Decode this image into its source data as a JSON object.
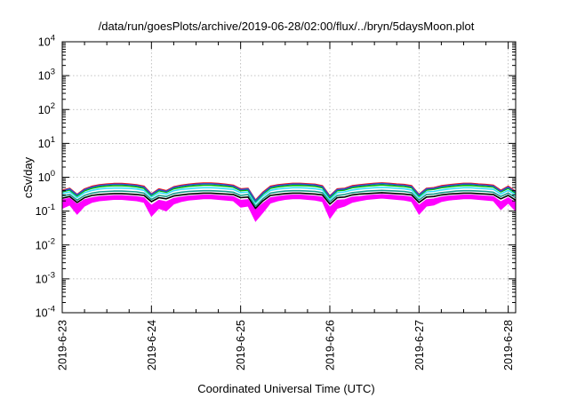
{
  "chart_data": {
    "type": "line",
    "title": "/data/run/goesPlots/archive/2019-06-28/02:00/flux/../bryn/5daysMoon.plot",
    "xlabel": "Coordinated Universal Time (UTC)",
    "ylabel": "cSv/day",
    "yscale": "log",
    "ylim": [
      0.0001,
      10000
    ],
    "xlim": [
      "2019-06-23 00:00",
      "2019-06-28 02:00"
    ],
    "grid": true,
    "x_ticks": [
      "2019-6-23",
      "2019-6-24",
      "2019-6-25",
      "2019-6-26",
      "2019-6-27",
      "2019-6-28"
    ],
    "y_ticks": [
      {
        "base": "10",
        "exp": "-4",
        "value": 0.0001
      },
      {
        "base": "10",
        "exp": "-3",
        "value": 0.001
      },
      {
        "base": "10",
        "exp": "-2",
        "value": 0.01
      },
      {
        "base": "10",
        "exp": "-1",
        "value": 0.1
      },
      {
        "base": "10",
        "exp": "0",
        "value": 1
      },
      {
        "base": "10",
        "exp": "1",
        "value": 10
      },
      {
        "base": "10",
        "exp": "2",
        "value": 100
      },
      {
        "base": "10",
        "exp": "3",
        "value": 1000
      },
      {
        "base": "10",
        "exp": "4",
        "value": 10000
      }
    ],
    "x_hours": [
      0,
      2,
      4,
      6,
      8,
      10,
      12,
      14,
      16,
      18,
      20,
      22,
      24,
      26,
      28,
      30,
      32,
      34,
      36,
      38,
      40,
      42,
      44,
      46,
      48,
      50,
      52,
      54,
      56,
      58,
      60,
      62,
      64,
      66,
      68,
      70,
      72,
      74,
      76,
      78,
      80,
      82,
      84,
      86,
      88,
      90,
      92,
      94,
      96,
      98,
      100,
      102,
      104,
      106,
      108,
      110,
      112,
      114,
      116,
      118,
      120,
      122
    ],
    "series": [
      {
        "color": "#ff00ff",
        "style": "band",
        "lower": [
          0.12,
          0.15,
          0.08,
          0.14,
          0.18,
          0.2,
          0.21,
          0.22,
          0.22,
          0.21,
          0.2,
          0.18,
          0.07,
          0.12,
          0.1,
          0.16,
          0.19,
          0.21,
          0.22,
          0.23,
          0.23,
          0.22,
          0.21,
          0.2,
          0.13,
          0.14,
          0.05,
          0.09,
          0.17,
          0.2,
          0.22,
          0.23,
          0.23,
          0.22,
          0.21,
          0.19,
          0.06,
          0.12,
          0.14,
          0.18,
          0.2,
          0.22,
          0.23,
          0.24,
          0.23,
          0.22,
          0.21,
          0.19,
          0.08,
          0.14,
          0.15,
          0.19,
          0.21,
          0.22,
          0.23,
          0.23,
          0.22,
          0.21,
          0.2,
          0.11,
          0.17,
          0.1
        ],
        "upper": [
          0.22,
          0.24,
          0.16,
          0.22,
          0.25,
          0.27,
          0.28,
          0.29,
          0.29,
          0.28,
          0.27,
          0.25,
          0.15,
          0.21,
          0.19,
          0.24,
          0.26,
          0.28,
          0.29,
          0.3,
          0.3,
          0.29,
          0.28,
          0.27,
          0.21,
          0.22,
          0.11,
          0.17,
          0.25,
          0.27,
          0.29,
          0.3,
          0.3,
          0.29,
          0.28,
          0.26,
          0.13,
          0.21,
          0.22,
          0.26,
          0.27,
          0.29,
          0.3,
          0.31,
          0.3,
          0.29,
          0.28,
          0.26,
          0.15,
          0.22,
          0.23,
          0.26,
          0.28,
          0.29,
          0.3,
          0.3,
          0.29,
          0.28,
          0.27,
          0.19,
          0.25,
          0.18
        ]
      },
      {
        "color": "#000000",
        "style": "line",
        "values": [
          0.24,
          0.27,
          0.18,
          0.25,
          0.29,
          0.31,
          0.32,
          0.33,
          0.33,
          0.32,
          0.31,
          0.29,
          0.19,
          0.25,
          0.23,
          0.28,
          0.3,
          0.32,
          0.33,
          0.34,
          0.34,
          0.33,
          0.32,
          0.31,
          0.25,
          0.26,
          0.12,
          0.2,
          0.29,
          0.31,
          0.33,
          0.34,
          0.34,
          0.33,
          0.32,
          0.3,
          0.16,
          0.25,
          0.26,
          0.3,
          0.32,
          0.33,
          0.34,
          0.35,
          0.34,
          0.33,
          0.32,
          0.3,
          0.18,
          0.26,
          0.27,
          0.3,
          0.32,
          0.33,
          0.34,
          0.34,
          0.33,
          0.32,
          0.31,
          0.23,
          0.29,
          0.21
        ]
      },
      {
        "color": "#1a9a8a",
        "style": "line",
        "values": [
          0.28,
          0.31,
          0.21,
          0.29,
          0.34,
          0.37,
          0.38,
          0.39,
          0.39,
          0.38,
          0.37,
          0.34,
          0.22,
          0.29,
          0.27,
          0.33,
          0.36,
          0.38,
          0.39,
          0.4,
          0.4,
          0.39,
          0.38,
          0.36,
          0.29,
          0.31,
          0.14,
          0.23,
          0.34,
          0.37,
          0.39,
          0.4,
          0.4,
          0.39,
          0.38,
          0.35,
          0.19,
          0.29,
          0.31,
          0.35,
          0.37,
          0.39,
          0.4,
          0.41,
          0.4,
          0.39,
          0.38,
          0.35,
          0.21,
          0.31,
          0.32,
          0.35,
          0.37,
          0.39,
          0.4,
          0.4,
          0.39,
          0.38,
          0.36,
          0.27,
          0.34,
          0.25
        ]
      },
      {
        "color": "#33e0ff",
        "style": "line",
        "values": [
          0.33,
          0.37,
          0.25,
          0.35,
          0.41,
          0.45,
          0.47,
          0.48,
          0.48,
          0.47,
          0.45,
          0.41,
          0.26,
          0.35,
          0.32,
          0.4,
          0.44,
          0.46,
          0.48,
          0.49,
          0.49,
          0.48,
          0.46,
          0.44,
          0.35,
          0.37,
          0.17,
          0.28,
          0.41,
          0.45,
          0.47,
          0.49,
          0.49,
          0.48,
          0.46,
          0.42,
          0.22,
          0.35,
          0.37,
          0.42,
          0.45,
          0.47,
          0.49,
          0.5,
          0.49,
          0.47,
          0.46,
          0.42,
          0.25,
          0.37,
          0.38,
          0.42,
          0.45,
          0.47,
          0.49,
          0.49,
          0.47,
          0.46,
          0.44,
          0.32,
          0.41,
          0.3
        ]
      },
      {
        "color": "#00c000",
        "style": "line",
        "values": [
          0.37,
          0.42,
          0.28,
          0.4,
          0.47,
          0.52,
          0.55,
          0.56,
          0.56,
          0.55,
          0.52,
          0.47,
          0.29,
          0.4,
          0.36,
          0.46,
          0.5,
          0.54,
          0.56,
          0.58,
          0.58,
          0.56,
          0.54,
          0.51,
          0.4,
          0.42,
          0.19,
          0.32,
          0.47,
          0.52,
          0.55,
          0.57,
          0.57,
          0.56,
          0.54,
          0.49,
          0.25,
          0.4,
          0.42,
          0.49,
          0.52,
          0.55,
          0.57,
          0.59,
          0.57,
          0.55,
          0.53,
          0.49,
          0.28,
          0.42,
          0.44,
          0.49,
          0.52,
          0.55,
          0.57,
          0.57,
          0.55,
          0.53,
          0.51,
          0.37,
          0.47,
          0.34
        ]
      },
      {
        "color": "#ff1010",
        "style": "line",
        "values": [
          0.41,
          0.47,
          0.31,
          0.45,
          0.54,
          0.6,
          0.63,
          0.65,
          0.65,
          0.63,
          0.6,
          0.54,
          0.32,
          0.45,
          0.4,
          0.52,
          0.58,
          0.62,
          0.65,
          0.67,
          0.67,
          0.65,
          0.62,
          0.58,
          0.45,
          0.47,
          0.21,
          0.36,
          0.54,
          0.6,
          0.63,
          0.66,
          0.66,
          0.64,
          0.62,
          0.56,
          0.28,
          0.45,
          0.47,
          0.56,
          0.6,
          0.63,
          0.66,
          0.68,
          0.66,
          0.63,
          0.61,
          0.56,
          0.31,
          0.47,
          0.49,
          0.56,
          0.6,
          0.63,
          0.66,
          0.66,
          0.63,
          0.61,
          0.58,
          0.41,
          0.54,
          0.38
        ]
      },
      {
        "color": "#2a50d0",
        "style": "line",
        "values": [
          0.39,
          0.45,
          0.3,
          0.43,
          0.51,
          0.57,
          0.6,
          0.62,
          0.62,
          0.6,
          0.57,
          0.51,
          0.31,
          0.43,
          0.38,
          0.5,
          0.55,
          0.59,
          0.62,
          0.64,
          0.64,
          0.62,
          0.59,
          0.55,
          0.43,
          0.45,
          0.2,
          0.34,
          0.51,
          0.57,
          0.6,
          0.63,
          0.63,
          0.61,
          0.59,
          0.53,
          0.27,
          0.43,
          0.45,
          0.53,
          0.57,
          0.6,
          0.63,
          0.65,
          0.63,
          0.6,
          0.58,
          0.53,
          0.3,
          0.45,
          0.47,
          0.53,
          0.57,
          0.6,
          0.63,
          0.63,
          0.6,
          0.58,
          0.55,
          0.39,
          0.51,
          0.36
        ]
      }
    ]
  }
}
